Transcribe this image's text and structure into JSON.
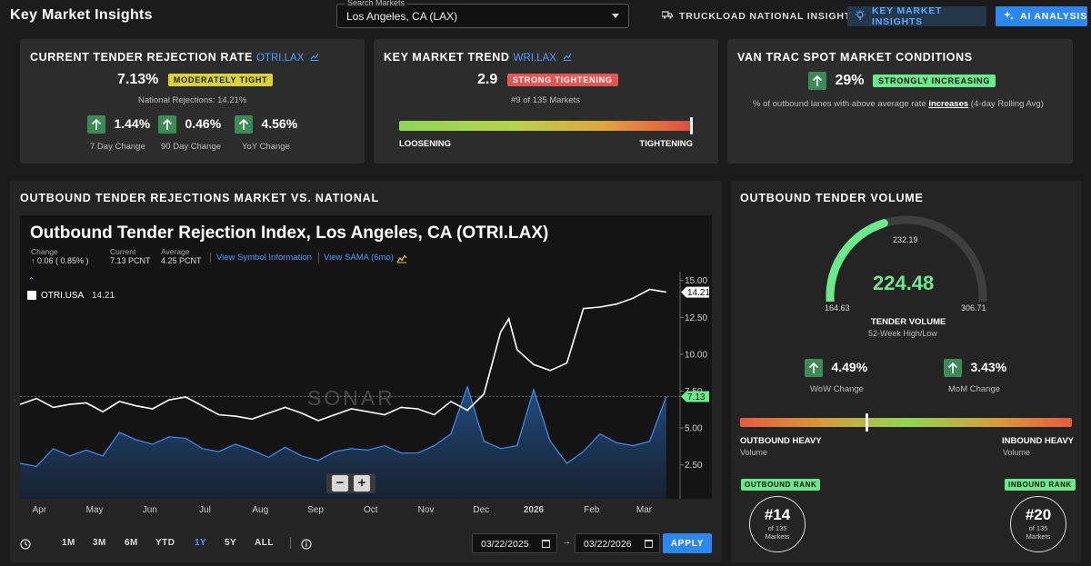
{
  "header": {
    "title": "Key Market Insights",
    "search_label": "Search Markets",
    "search_value": "Los Angeles, CA (LAX)",
    "nav_truckload": "TRUCKLOAD NATIONAL INSIGHTS",
    "nav_kmi": "KEY MARKET INSIGHTS",
    "nav_ai": "AI ANALYSIS"
  },
  "rejection_card": {
    "title": "CURRENT TENDER REJECTION RATE",
    "symbol": "OTRI.LAX",
    "value": "7.13%",
    "badge": "MODERATELY TIGHT",
    "national": "National Rejections: 14.21%",
    "changes": [
      {
        "value": "1.44%",
        "label": "7 Day Change"
      },
      {
        "value": "0.46%",
        "label": "90 Day Change"
      },
      {
        "value": "4.56%",
        "label": "YoY Change"
      }
    ]
  },
  "trend_card": {
    "title": "KEY MARKET TREND",
    "symbol": "WRI.LAX",
    "value": "2.9",
    "badge": "STRONG TIGHTENING",
    "rank": "#9 of 135 Markets",
    "left_label": "LOOSENING",
    "right_label": "TIGHTENING",
    "position": 1.0
  },
  "vantrac_card": {
    "title": "VAN TRAC SPOT MARKET CONDITIONS",
    "value": "29%",
    "badge": "STRONGLY INCREASING",
    "desc_pre": "% of outbound lanes with above average rate ",
    "desc_em": "increases",
    "desc_post": " (4-day Rolling Avg)"
  },
  "outbound_section": {
    "title": "OUTBOUND TENDER REJECTIONS MARKET VS. NATIONAL",
    "chart_title": "Outbound Tender Rejection Index, Los Angeles, CA (OTRI.LAX)",
    "stats": {
      "change_label": "Change",
      "change_value": "0.06 ( 0.85% )",
      "current_label": "Current",
      "current_value": "7.13 PCNT",
      "average_label": "Average",
      "average_value": "4.25 PCNT"
    },
    "link_symbol": "View Symbol Information",
    "link_sama": "View SAMA (6mo)",
    "legend_name": "OTRI.USA",
    "legend_value": "14.21",
    "watermark": "SONAR",
    "zoom_minus": "−",
    "zoom_plus": "+",
    "ranges": [
      "1M",
      "3M",
      "6M",
      "YTD",
      "1Y",
      "5Y",
      "ALL"
    ],
    "active_range": "1Y",
    "date_from": "03/22/2025",
    "date_to": "03/22/2026",
    "arrow": "→",
    "apply": "APPLY"
  },
  "chart_data": {
    "type": "area",
    "title": "Outbound Tender Rejection Index, Los Angeles, CA (OTRI.LAX)",
    "x_tick_labels": [
      "Apr",
      "May",
      "Jun",
      "Jul",
      "Aug",
      "Sep",
      "Oct",
      "Nov",
      "Dec",
      "2026",
      "Feb",
      "Mar"
    ],
    "y_tick_labels": [
      "2.50",
      "5.00",
      "7.50",
      "10.00",
      "12.50",
      "15.00"
    ],
    "ylim": [
      0.2,
      15.6
    ],
    "grid": false,
    "series": [
      {
        "name": "OTRI.LAX",
        "style": "area",
        "color": "#2f7fe0",
        "last_label": "7.13",
        "x": [
          0.0,
          0.3,
          0.6,
          0.9,
          1.2,
          1.5,
          1.8,
          2.1,
          2.4,
          2.7,
          3.0,
          3.3,
          3.6,
          3.9,
          4.2,
          4.5,
          4.8,
          5.1,
          5.4,
          5.7,
          6.0,
          6.3,
          6.6,
          6.9,
          7.2,
          7.5,
          7.8,
          8.1,
          8.4,
          8.7,
          9.0,
          9.3,
          9.6,
          9.9,
          10.2,
          10.5,
          10.8,
          11.1,
          11.4,
          11.7
        ],
        "values": [
          2.6,
          2.4,
          3.6,
          3.1,
          3.5,
          3.1,
          4.7,
          4.2,
          3.9,
          4.4,
          4.3,
          3.6,
          3.4,
          3.9,
          3.5,
          3.0,
          3.7,
          3.1,
          2.8,
          3.4,
          3.6,
          3.5,
          3.8,
          3.3,
          3.3,
          3.8,
          4.6,
          7.8,
          4.1,
          3.6,
          3.8,
          7.6,
          4.1,
          2.6,
          3.4,
          4.6,
          4.0,
          3.8,
          4.1,
          7.13
        ]
      },
      {
        "name": "OTRI.USA",
        "style": "line",
        "color": "#ffffff",
        "last_label": "14.21",
        "x": [
          0.0,
          0.3,
          0.6,
          0.9,
          1.2,
          1.5,
          1.8,
          2.1,
          2.4,
          2.7,
          3.0,
          3.3,
          3.6,
          3.9,
          4.2,
          4.5,
          4.8,
          5.1,
          5.4,
          5.7,
          6.0,
          6.3,
          6.6,
          6.9,
          7.2,
          7.5,
          7.8,
          8.1,
          8.4,
          8.7,
          8.85,
          9.0,
          9.3,
          9.6,
          9.9,
          10.2,
          10.5,
          10.8,
          11.1,
          11.4,
          11.7
        ],
        "values": [
          6.6,
          7.0,
          6.4,
          6.6,
          6.7,
          6.1,
          6.8,
          6.5,
          6.3,
          6.9,
          7.1,
          6.5,
          5.9,
          5.8,
          5.6,
          6.0,
          6.4,
          6.0,
          5.5,
          5.9,
          6.3,
          6.1,
          5.9,
          6.4,
          6.3,
          5.9,
          6.8,
          6.2,
          7.3,
          11.5,
          12.4,
          10.3,
          9.3,
          8.9,
          9.4,
          13.1,
          13.2,
          13.4,
          13.8,
          14.4,
          14.21
        ]
      }
    ],
    "reference_line": 7.13
  },
  "volume_section": {
    "title": "OUTBOUND TENDER VOLUME",
    "value": "224.48",
    "min": "164.63",
    "max": "306.71",
    "prev": "232.19",
    "gauge_fraction": 0.421,
    "label": "TENDER VOLUME",
    "sublabel": "52-Week High/Low",
    "changes": [
      {
        "value": "4.49%",
        "label": "WoW Change"
      },
      {
        "value": "3.43%",
        "label": "MoM Change"
      }
    ],
    "balance_position": 0.38,
    "left_heavy": "OUTBOUND HEAVY",
    "right_heavy": "INBOUND HEAVY",
    "heavy_sub": "Volume",
    "outbound_rank_label": "OUTBOUND RANK",
    "outbound_rank": "#14",
    "inbound_rank_label": "INBOUND RANK",
    "inbound_rank": "#20",
    "rank_of": "of 135",
    "rank_markets": "Markets"
  }
}
